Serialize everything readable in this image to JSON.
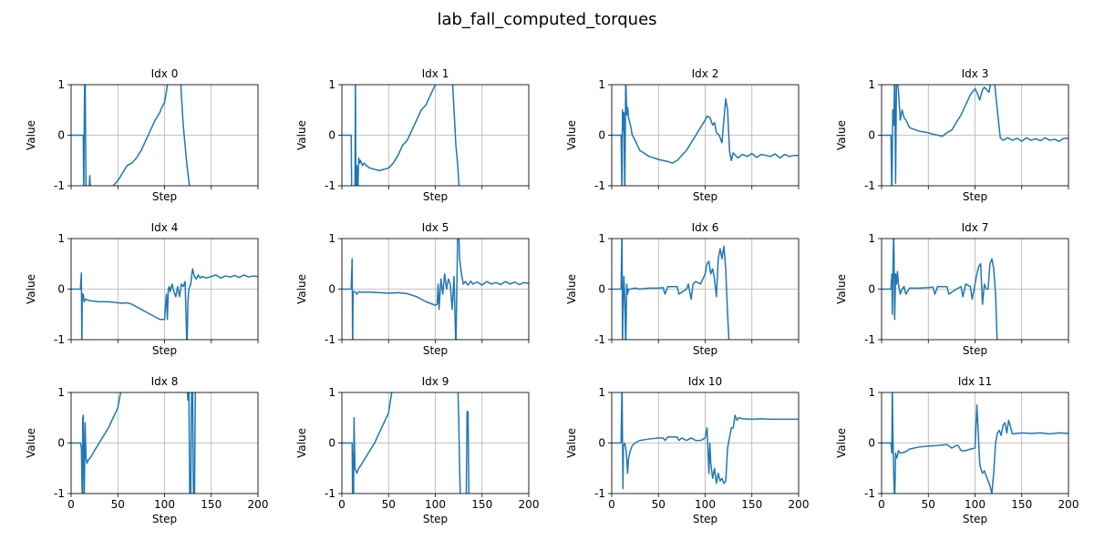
{
  "figure": {
    "title": "lab_fall_computed_torques"
  },
  "style": {
    "line_color": "#1f77b4",
    "grid_color": "#b0b0b0",
    "axis_color": "#000000"
  },
  "chart_data": [
    {
      "type": "line",
      "title": "Idx 0",
      "xlabel": "Step",
      "ylabel": "Value",
      "xlim": [
        0,
        200
      ],
      "ylim": [
        -1,
        1
      ],
      "grid": true,
      "xticks": [
        0,
        50,
        100,
        150,
        200
      ],
      "yticks": [
        -1,
        0,
        1
      ],
      "show_x_tick_labels": false,
      "x": [
        0,
        13,
        13.5,
        14.5,
        15,
        16,
        17,
        19,
        20,
        21,
        30,
        35,
        40,
        45,
        50,
        55,
        60,
        65,
        70,
        75,
        80,
        85,
        90,
        95,
        97,
        100,
        105,
        117,
        118,
        120,
        122,
        124,
        126,
        128
      ],
      "y": [
        0,
        0,
        -1.2,
        1.2,
        1.2,
        -1.2,
        -1.2,
        -1.2,
        -0.8,
        -1.2,
        -1.2,
        -1.0,
        -1.05,
        -1.0,
        -0.9,
        -0.75,
        -0.6,
        -0.55,
        -0.45,
        -0.3,
        -0.1,
        0.1,
        0.3,
        0.45,
        0.55,
        0.65,
        1.2,
        1.2,
        0.8,
        0.2,
        -0.2,
        -0.6,
        -0.9,
        -1.2
      ]
    },
    {
      "type": "line",
      "title": "Idx 1",
      "xlabel": "Step",
      "ylabel": "Value",
      "xlim": [
        0,
        200
      ],
      "ylim": [
        -1,
        1
      ],
      "grid": true,
      "xticks": [
        0,
        50,
        100,
        150,
        200
      ],
      "yticks": [
        -1,
        0,
        1
      ],
      "show_x_tick_labels": false,
      "x": [
        0,
        10,
        10.5,
        14,
        14.5,
        15,
        16,
        17,
        18,
        19,
        20,
        22,
        24,
        26,
        30,
        40,
        50,
        55,
        60,
        65,
        70,
        75,
        80,
        85,
        90,
        95,
        100,
        110,
        118,
        120,
        122,
        124,
        126
      ],
      "y": [
        0,
        0,
        -1.2,
        -1.2,
        1.2,
        -1.2,
        -0.6,
        -1.2,
        -0.45,
        -0.55,
        -0.5,
        -0.6,
        -0.55,
        -0.6,
        -0.65,
        -0.7,
        -0.65,
        -0.55,
        -0.4,
        -0.2,
        -0.1,
        0.1,
        0.3,
        0.5,
        0.6,
        0.8,
        1.0,
        1.2,
        1.2,
        0.5,
        -0.2,
        -0.6,
        -1.2
      ]
    },
    {
      "type": "line",
      "title": "Idx 2",
      "xlabel": "Step",
      "ylabel": "Value",
      "xlim": [
        0,
        200
      ],
      "ylim": [
        -1,
        1
      ],
      "grid": true,
      "xticks": [
        0,
        50,
        100,
        150,
        200
      ],
      "yticks": [
        -1,
        0,
        1
      ],
      "show_x_tick_labels": false,
      "x": [
        0,
        10,
        11,
        11.5,
        12,
        13,
        14,
        15,
        16,
        17,
        18,
        20,
        22,
        25,
        30,
        40,
        50,
        55,
        60,
        65,
        70,
        75,
        80,
        85,
        90,
        95,
        100,
        102,
        105,
        108,
        110,
        112,
        115,
        118,
        120,
        122,
        124,
        126,
        128,
        130,
        135,
        140,
        145,
        150,
        155,
        160,
        165,
        170,
        175,
        180,
        185,
        190,
        195,
        200
      ],
      "y": [
        0,
        0,
        -1.2,
        0.5,
        0.1,
        0.45,
        -1.2,
        1.2,
        0.4,
        0.55,
        0.35,
        0.2,
        0.0,
        -0.1,
        -0.3,
        -0.42,
        -0.48,
        -0.5,
        -0.52,
        -0.55,
        -0.5,
        -0.4,
        -0.3,
        -0.15,
        0.0,
        0.15,
        0.3,
        0.38,
        0.35,
        0.2,
        0.25,
        0.05,
        0.0,
        -0.15,
        0.3,
        0.72,
        0.5,
        -0.3,
        -0.5,
        -0.35,
        -0.45,
        -0.38,
        -0.42,
        -0.36,
        -0.44,
        -0.38,
        -0.4,
        -0.42,
        -0.37,
        -0.45,
        -0.38,
        -0.42,
        -0.4,
        -0.4
      ]
    },
    {
      "type": "line",
      "title": "Idx 3",
      "xlabel": "Step",
      "ylabel": "Value",
      "xlim": [
        0,
        200
      ],
      "ylim": [
        -1,
        1
      ],
      "grid": true,
      "xticks": [
        0,
        50,
        100,
        150,
        200
      ],
      "yticks": [
        -1,
        0,
        1
      ],
      "show_x_tick_labels": false,
      "x": [
        0,
        10,
        11,
        12,
        13,
        14,
        15,
        16,
        18,
        20,
        22,
        24,
        26,
        30,
        40,
        50,
        55,
        60,
        65,
        70,
        75,
        80,
        85,
        90,
        95,
        100,
        102,
        105,
        108,
        110,
        115,
        118,
        120,
        125,
        127,
        130,
        135,
        140,
        145,
        150,
        155,
        160,
        165,
        170,
        175,
        180,
        185,
        190,
        195,
        200
      ],
      "y": [
        0,
        0,
        -1.2,
        0.5,
        0.2,
        1.2,
        -0.95,
        1.2,
        0.9,
        0.3,
        0.5,
        0.35,
        0.3,
        0.15,
        0.08,
        0.05,
        0.02,
        0.0,
        -0.02,
        0.05,
        0.1,
        0.25,
        0.4,
        0.6,
        0.8,
        0.92,
        0.85,
        0.7,
        0.9,
        0.95,
        0.85,
        1.2,
        1.2,
        0.3,
        -0.05,
        -0.1,
        -0.05,
        -0.1,
        -0.06,
        -0.12,
        -0.05,
        -0.1,
        -0.07,
        -0.11,
        -0.05,
        -0.1,
        -0.08,
        -0.12,
        -0.06,
        -0.06
      ]
    },
    {
      "type": "line",
      "title": "Idx 4",
      "xlabel": "Step",
      "ylabel": "Value",
      "xlim": [
        0,
        200
      ],
      "ylim": [
        -1,
        1
      ],
      "grid": true,
      "xticks": [
        0,
        50,
        100,
        150,
        200
      ],
      "yticks": [
        -1,
        0,
        1
      ],
      "show_x_tick_labels": false,
      "x": [
        0,
        10,
        11,
        11.5,
        12,
        13,
        14,
        15,
        20,
        30,
        40,
        50,
        55,
        60,
        65,
        70,
        75,
        80,
        85,
        90,
        95,
        100,
        102,
        103,
        104,
        105,
        106,
        108,
        110,
        112,
        114,
        116,
        118,
        120,
        122,
        124,
        125,
        126,
        128,
        130,
        132,
        134,
        136,
        138,
        140,
        145,
        150,
        155,
        160,
        165,
        170,
        175,
        180,
        185,
        190,
        195,
        200
      ],
      "y": [
        0,
        0,
        0.32,
        -1.2,
        -0.1,
        -0.1,
        -0.25,
        -0.2,
        -0.23,
        -0.25,
        -0.25,
        -0.27,
        -0.28,
        -0.27,
        -0.3,
        -0.35,
        -0.4,
        -0.45,
        -0.5,
        -0.55,
        -0.6,
        -0.6,
        -0.1,
        -0.6,
        0.0,
        0.05,
        -0.05,
        0.1,
        -0.05,
        -0.15,
        0.05,
        -0.15,
        0.1,
        0.05,
        0.15,
        -1.2,
        -0.25,
        0.0,
        0.1,
        0.4,
        0.25,
        0.2,
        0.28,
        0.22,
        0.25,
        0.22,
        0.25,
        0.28,
        0.22,
        0.26,
        0.24,
        0.27,
        0.23,
        0.28,
        0.24,
        0.26,
        0.25
      ]
    },
    {
      "type": "line",
      "title": "Idx 5",
      "xlabel": "Step",
      "ylabel": "Value",
      "xlim": [
        0,
        200
      ],
      "ylim": [
        -1,
        1
      ],
      "grid": true,
      "xticks": [
        0,
        50,
        100,
        150,
        200
      ],
      "yticks": [
        -1,
        0,
        1
      ],
      "show_x_tick_labels": false,
      "x": [
        0,
        10,
        11,
        11.5,
        12,
        14,
        16,
        18,
        20,
        30,
        40,
        50,
        60,
        70,
        80,
        90,
        100,
        102,
        103,
        104,
        106,
        108,
        110,
        112,
        114,
        116,
        118,
        120,
        122,
        124,
        125,
        126,
        128,
        130,
        132,
        135,
        138,
        140,
        145,
        150,
        155,
        160,
        165,
        170,
        175,
        180,
        185,
        190,
        195,
        200
      ],
      "y": [
        0,
        0,
        0.6,
        -1.2,
        -0.05,
        -0.05,
        -0.1,
        -0.05,
        -0.06,
        -0.06,
        -0.07,
        -0.08,
        -0.07,
        -0.09,
        -0.15,
        -0.25,
        -0.32,
        -0.3,
        0.1,
        -0.4,
        0.2,
        -0.1,
        0.3,
        0.0,
        0.2,
        0.1,
        -0.4,
        0.25,
        -1.2,
        1.2,
        1.2,
        0.6,
        0.3,
        0.1,
        0.15,
        0.08,
        0.16,
        0.1,
        0.14,
        0.08,
        0.15,
        0.1,
        0.13,
        0.09,
        0.15,
        0.1,
        0.14,
        0.09,
        0.13,
        0.11
      ]
    },
    {
      "type": "line",
      "title": "Idx 6",
      "xlabel": "Step",
      "ylabel": "Value",
      "xlim": [
        0,
        200
      ],
      "ylim": [
        -1,
        1
      ],
      "grid": true,
      "xticks": [
        0,
        50,
        100,
        150,
        200
      ],
      "yticks": [
        -1,
        0,
        1
      ],
      "show_x_tick_labels": false,
      "x": [
        0,
        10,
        11,
        11.5,
        12,
        13,
        14,
        15,
        16,
        17,
        18,
        20,
        25,
        30,
        40,
        50,
        55,
        57,
        60,
        62,
        70,
        72,
        80,
        82,
        85,
        87,
        90,
        95,
        100,
        102,
        104,
        106,
        108,
        110,
        112,
        114,
        116,
        118,
        120,
        122,
        124,
        126
      ],
      "y": [
        0,
        0,
        1.2,
        -1.2,
        -0.5,
        0.25,
        -0.2,
        -1.2,
        0.1,
        -0.1,
        0.0,
        0.0,
        0.02,
        0.0,
        0.02,
        0.02,
        0.03,
        -0.1,
        0.05,
        0.05,
        0.05,
        -0.1,
        0.0,
        0.1,
        -0.2,
        0.1,
        0.15,
        0.1,
        0.3,
        0.5,
        0.55,
        0.3,
        0.4,
        0.2,
        -0.15,
        0.6,
        0.8,
        0.6,
        0.85,
        0.4,
        -0.5,
        -1.2
      ]
    },
    {
      "type": "line",
      "title": "Idx 7",
      "xlabel": "Step",
      "ylabel": "Value",
      "xlim": [
        0,
        200
      ],
      "ylim": [
        -1,
        1
      ],
      "grid": true,
      "xticks": [
        0,
        50,
        100,
        150,
        200
      ],
      "yticks": [
        -1,
        0,
        1
      ],
      "show_x_tick_labels": false,
      "x": [
        0,
        10,
        11,
        11.5,
        12,
        13,
        14,
        15,
        16,
        17,
        18,
        20,
        22,
        24,
        26,
        30,
        40,
        50,
        55,
        57,
        60,
        62,
        70,
        72,
        80,
        85,
        87,
        90,
        95,
        97,
        100,
        102,
        104,
        106,
        108,
        110,
        112,
        114,
        116,
        118,
        120,
        122,
        124
      ],
      "y": [
        0,
        0,
        0.3,
        -0.5,
        0.2,
        1.2,
        -0.6,
        0.3,
        0.1,
        0.35,
        0.1,
        -0.1,
        0.0,
        0.05,
        -0.1,
        0.02,
        0.02,
        0.03,
        0.04,
        -0.1,
        0.05,
        0.05,
        0.05,
        -0.1,
        0.0,
        0.05,
        -0.15,
        0.1,
        0.05,
        -0.2,
        0.1,
        0.3,
        0.45,
        0.5,
        -0.3,
        0.1,
        0.0,
        0.0,
        0.5,
        0.6,
        0.4,
        -0.1,
        -1.2
      ]
    },
    {
      "type": "line",
      "title": "Idx 8",
      "xlabel": "Step",
      "ylabel": "Value",
      "xlim": [
        0,
        200
      ],
      "ylim": [
        -1,
        1
      ],
      "grid": true,
      "xticks": [
        0,
        50,
        100,
        150,
        200
      ],
      "yticks": [
        -1,
        0,
        1
      ],
      "show_x_tick_labels": false,
      "x": [
        0,
        10,
        11,
        12,
        12.5,
        13,
        14,
        15,
        16,
        17,
        18,
        20,
        22,
        25,
        30,
        35,
        40,
        45,
        50,
        55,
        124,
        125,
        126,
        127,
        128,
        129,
        130,
        131,
        132,
        133
      ],
      "y": [
        0,
        0,
        -0.1,
        -1.2,
        0.5,
        0.55,
        -1.2,
        0.4,
        -0.3,
        -0.4,
        -0.35,
        -0.3,
        -0.25,
        -0.15,
        0.0,
        0.15,
        0.3,
        0.5,
        0.7,
        1.2,
        1.2,
        0.85,
        1.2,
        -1.2,
        -1.2,
        1.2,
        1.2,
        -1.2,
        -1.2,
        1.2
      ]
    },
    {
      "type": "line",
      "title": "Idx 9",
      "xlabel": "Step",
      "ylabel": "Value",
      "xlim": [
        0,
        200
      ],
      "ylim": [
        -1,
        1
      ],
      "grid": true,
      "xticks": [
        0,
        50,
        100,
        150,
        200
      ],
      "yticks": [
        -1,
        0,
        1
      ],
      "show_x_tick_labels": false,
      "x": [
        0,
        10,
        11,
        11.5,
        12,
        12.5,
        13,
        14,
        16,
        18,
        20,
        25,
        30,
        35,
        40,
        45,
        50,
        55,
        124,
        125,
        126,
        127,
        128,
        129,
        130,
        131,
        132,
        133,
        134,
        135,
        136
      ],
      "y": [
        0,
        0,
        0,
        -1.2,
        -0.2,
        -1.2,
        0.5,
        -0.5,
        -0.6,
        -0.5,
        -0.45,
        -0.3,
        -0.15,
        0.0,
        0.2,
        0.4,
        0.6,
        1.2,
        1.2,
        0.5,
        -0.5,
        -1.2,
        -1.2,
        -1.2,
        -1.2,
        -1.2,
        -1.2,
        -1.2,
        0.62,
        0.62,
        -1.2
      ]
    },
    {
      "type": "line",
      "title": "Idx 10",
      "xlabel": "Step",
      "ylabel": "Value",
      "xlim": [
        0,
        200
      ],
      "ylim": [
        -1,
        1
      ],
      "grid": true,
      "xticks": [
        0,
        50,
        100,
        150,
        200
      ],
      "yticks": [
        -1,
        0,
        1
      ],
      "show_x_tick_labels": false,
      "x": [
        0,
        10,
        11,
        12,
        12.5,
        13,
        14,
        15,
        16,
        17,
        18,
        20,
        22,
        25,
        30,
        40,
        50,
        55,
        57,
        60,
        70,
        72,
        75,
        80,
        85,
        90,
        95,
        100,
        102,
        104,
        105,
        106,
        108,
        110,
        112,
        114,
        116,
        118,
        120,
        122,
        124,
        126,
        128,
        130,
        132,
        134,
        136,
        140,
        150,
        160,
        170,
        180,
        190,
        200
      ],
      "y": [
        0,
        0,
        1.2,
        -0.9,
        -0.05,
        -0.05,
        0.0,
        -0.1,
        -0.3,
        -0.6,
        -0.3,
        -0.15,
        -0.05,
        0.0,
        0.05,
        0.08,
        0.1,
        0.1,
        0.05,
        0.12,
        0.12,
        0.05,
        0.1,
        0.05,
        0.1,
        0.05,
        0.05,
        0.1,
        0.3,
        -0.6,
        0.0,
        -0.4,
        -0.7,
        -0.5,
        -0.8,
        -0.6,
        -0.75,
        -0.7,
        -0.8,
        -0.75,
        -0.1,
        0.1,
        0.3,
        0.3,
        0.55,
        0.45,
        0.5,
        0.48,
        0.47,
        0.48,
        0.47,
        0.47,
        0.47,
        0.47
      ]
    },
    {
      "type": "line",
      "title": "Idx 11",
      "xlabel": "Step",
      "ylabel": "Value",
      "xlim": [
        0,
        200
      ],
      "ylim": [
        -1,
        1
      ],
      "grid": true,
      "xticks": [
        0,
        50,
        100,
        150,
        200
      ],
      "yticks": [
        -1,
        0,
        1
      ],
      "show_x_tick_labels": false,
      "x": [
        0,
        10,
        11,
        11.5,
        12,
        13,
        14,
        15,
        16,
        17,
        18,
        20,
        25,
        30,
        40,
        50,
        60,
        70,
        75,
        80,
        82,
        85,
        90,
        95,
        100,
        102,
        104,
        105,
        106,
        108,
        110,
        112,
        114,
        116,
        118,
        120,
        122,
        124,
        126,
        128,
        130,
        132,
        134,
        136,
        140,
        150,
        160,
        170,
        180,
        190,
        200
      ],
      "y": [
        0,
        0,
        -0.2,
        1.2,
        0.3,
        -0.6,
        -1.2,
        -0.2,
        -0.3,
        -0.25,
        -0.15,
        -0.2,
        -0.18,
        -0.12,
        -0.08,
        -0.06,
        -0.05,
        -0.03,
        -0.1,
        -0.05,
        -0.05,
        -0.15,
        -0.15,
        -0.12,
        -0.1,
        0.75,
        0.0,
        -0.4,
        -0.5,
        -0.6,
        -0.55,
        -0.65,
        -0.75,
        -0.85,
        -1.0,
        -0.6,
        0.0,
        0.2,
        0.25,
        0.15,
        0.35,
        0.4,
        0.2,
        0.45,
        0.18,
        0.2,
        0.19,
        0.2,
        0.18,
        0.2,
        0.19
      ]
    }
  ]
}
